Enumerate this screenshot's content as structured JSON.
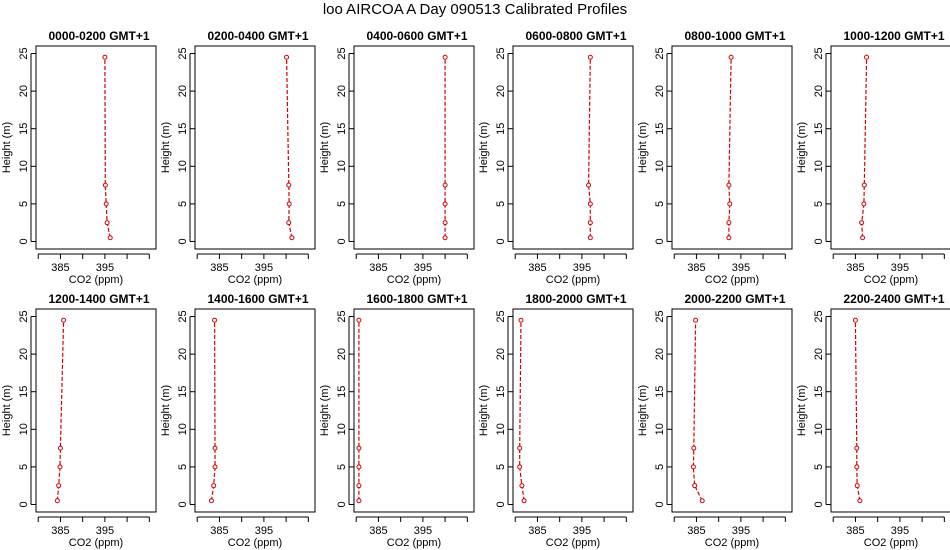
{
  "title": "loo AIRCOA A  Day 090513  Calibrated Profiles",
  "chart_data": [
    {
      "type": "line",
      "title": "0000-0200 GMT+1",
      "xlabel": "CO2 (ppm)",
      "ylabel": "Height (m)",
      "xlim": [
        379.5,
        406.5
      ],
      "ylim": [
        -1,
        26
      ],
      "xticks": [
        "385",
        "395"
      ],
      "yticks": [
        "0",
        "5",
        "10",
        "15",
        "20",
        "25"
      ],
      "series": [
        {
          "x": [
            396.2,
            395.5,
            395.3,
            395.1,
            395.0
          ],
          "y": [
            0.5,
            2.5,
            5.0,
            7.5,
            24.5
          ]
        }
      ]
    },
    {
      "type": "line",
      "title": "0200-0400 GMT+1",
      "xlabel": "CO2 (ppm)",
      "ylabel": "Height (m)",
      "xlim": [
        379.5,
        406.5
      ],
      "ylim": [
        -1,
        26
      ],
      "xticks": [
        "385",
        "395"
      ],
      "yticks": [
        "0",
        "5",
        "10",
        "15",
        "20",
        "25"
      ],
      "series": [
        {
          "x": [
            401.3,
            400.6,
            400.7,
            400.6,
            400.1
          ],
          "y": [
            0.5,
            2.5,
            5.0,
            7.5,
            24.5
          ]
        }
      ]
    },
    {
      "type": "line",
      "title": "0400-0600 GMT+1",
      "xlabel": "CO2 (ppm)",
      "ylabel": "Height (m)",
      "xlim": [
        379.5,
        406.5
      ],
      "ylim": [
        -1,
        26
      ],
      "xticks": [
        "385",
        "395"
      ],
      "yticks": [
        "0",
        "5",
        "10",
        "15",
        "20",
        "25"
      ],
      "series": [
        {
          "x": [
            400.0,
            400.0,
            400.0,
            400.0,
            400.0
          ],
          "y": [
            0.5,
            2.5,
            5.0,
            7.5,
            24.5
          ]
        }
      ]
    },
    {
      "type": "line",
      "title": "0600-0800 GMT+1",
      "xlabel": "CO2 (ppm)",
      "ylabel": "Height (m)",
      "xlim": [
        379.5,
        406.5
      ],
      "ylim": [
        -1,
        26
      ],
      "xticks": [
        "385",
        "395"
      ],
      "yticks": [
        "0",
        "5",
        "10",
        "15",
        "20",
        "25"
      ],
      "series": [
        {
          "x": [
            396.9,
            396.9,
            396.9,
            396.5,
            396.9
          ],
          "y": [
            0.5,
            2.5,
            5.0,
            7.5,
            24.5
          ]
        }
      ]
    },
    {
      "type": "line",
      "title": "0800-1000 GMT+1",
      "xlabel": "CO2 (ppm)",
      "ylabel": "Height (m)",
      "xlim": [
        379.5,
        406.5
      ],
      "ylim": [
        -1,
        26
      ],
      "xticks": [
        "385",
        "395"
      ],
      "yticks": [
        "0",
        "5",
        "10",
        "15",
        "20",
        "25"
      ],
      "series": [
        {
          "x": [
            392.3,
            392.3,
            392.5,
            392.3,
            392.8
          ],
          "y": [
            0.5,
            2.5,
            5.0,
            7.5,
            24.5
          ]
        }
      ]
    },
    {
      "type": "line",
      "title": "1000-1200 GMT+1",
      "xlabel": "CO2 (ppm)",
      "ylabel": "Height (m)",
      "xlim": [
        379.5,
        406.5
      ],
      "ylim": [
        -1,
        26
      ],
      "xticks": [
        "385",
        "395"
      ],
      "yticks": [
        "0",
        "5",
        "10",
        "15",
        "20",
        "25"
      ],
      "series": [
        {
          "x": [
            386.6,
            386.4,
            386.9,
            387.0,
            387.5
          ],
          "y": [
            0.5,
            2.5,
            5.0,
            7.5,
            24.5
          ]
        }
      ]
    },
    {
      "type": "line",
      "title": "1200-1400 GMT+1",
      "xlabel": "CO2 (ppm)",
      "ylabel": "Height (m)",
      "xlim": [
        379.5,
        406.5
      ],
      "ylim": [
        -1,
        26
      ],
      "xticks": [
        "385",
        "395"
      ],
      "yticks": [
        "0",
        "5",
        "10",
        "15",
        "20",
        "25"
      ],
      "series": [
        {
          "x": [
            384.3,
            384.6,
            384.9,
            385.0,
            385.7
          ],
          "y": [
            0.5,
            2.5,
            5.0,
            7.5,
            24.5
          ]
        }
      ]
    },
    {
      "type": "line",
      "title": "1400-1600 GMT+1",
      "xlabel": "CO2 (ppm)",
      "ylabel": "Height (m)",
      "xlim": [
        379.5,
        406.5
      ],
      "ylim": [
        -1,
        26
      ],
      "xticks": [
        "385",
        "395"
      ],
      "yticks": [
        "0",
        "5",
        "10",
        "15",
        "20",
        "25"
      ],
      "series": [
        {
          "x": [
            383.2,
            383.7,
            384.0,
            384.0,
            383.9
          ],
          "y": [
            0.5,
            2.5,
            5.0,
            7.5,
            24.5
          ]
        }
      ]
    },
    {
      "type": "line",
      "title": "1600-1800 GMT+1",
      "xlabel": "CO2 (ppm)",
      "ylabel": "Height (m)",
      "xlim": [
        379.5,
        406.5
      ],
      "ylim": [
        -1,
        26
      ],
      "xticks": [
        "385",
        "395"
      ],
      "yticks": [
        "0",
        "5",
        "10",
        "15",
        "20",
        "25"
      ],
      "series": [
        {
          "x": [
            380.6,
            380.6,
            380.6,
            380.6,
            380.6
          ],
          "y": [
            0.5,
            2.5,
            5.0,
            7.5,
            24.5
          ]
        }
      ]
    },
    {
      "type": "line",
      "title": "1800-2000 GMT+1",
      "xlabel": "CO2 (ppm)",
      "ylabel": "Height (m)",
      "xlim": [
        379.5,
        406.5
      ],
      "ylim": [
        -1,
        26
      ],
      "xticks": [
        "385",
        "395"
      ],
      "yticks": [
        "0",
        "5",
        "10",
        "15",
        "20",
        "25"
      ],
      "series": [
        {
          "x": [
            382.0,
            381.5,
            381.0,
            381.0,
            381.3
          ],
          "y": [
            0.5,
            2.5,
            5.0,
            7.5,
            24.5
          ]
        }
      ]
    },
    {
      "type": "line",
      "title": "2000-2200 GMT+1",
      "xlabel": "CO2 (ppm)",
      "ylabel": "Height (m)",
      "xlim": [
        379.5,
        406.5
      ],
      "ylim": [
        -1,
        26
      ],
      "xticks": [
        "385",
        "395"
      ],
      "yticks": [
        "0",
        "5",
        "10",
        "15",
        "20",
        "25"
      ],
      "series": [
        {
          "x": [
            386.3,
            384.6,
            384.3,
            384.4,
            384.8
          ],
          "y": [
            0.5,
            2.5,
            5.0,
            7.5,
            24.5
          ]
        }
      ]
    },
    {
      "type": "line",
      "title": "2200-2400 GMT+1",
      "xlabel": "CO2 (ppm)",
      "ylabel": "Height (m)",
      "xlim": [
        379.5,
        406.5
      ],
      "ylim": [
        -1,
        26
      ],
      "xticks": [
        "385",
        "395"
      ],
      "yticks": [
        "0",
        "5",
        "10",
        "15",
        "20",
        "25"
      ],
      "series": [
        {
          "x": [
            386.0,
            385.4,
            385.3,
            385.3,
            385.0
          ],
          "y": [
            0.5,
            2.5,
            5.0,
            7.5,
            24.5
          ]
        }
      ]
    }
  ]
}
